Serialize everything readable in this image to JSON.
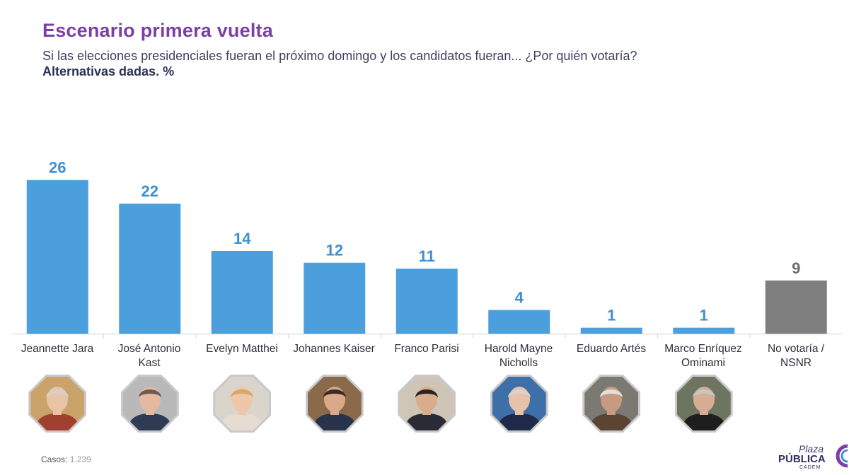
{
  "header": {
    "title": "Escenario primera vuelta",
    "subtitle": "Si las elecciones presidenciales fueran el próximo domingo y los candidatos fueran... ¿Por quién votaría?",
    "subtitle2": "Alternativas dadas. %"
  },
  "chart_data": {
    "type": "bar",
    "categories": [
      "Jeannette Jara",
      "José Antonio Kast",
      "Evelyn Matthei",
      "Johannes Kaiser",
      "Franco Parisi",
      "Harold Mayne Nicholls",
      "Eduardo Artés",
      "Marco Enríquez Ominami",
      "No votaría / NSNR"
    ],
    "values": [
      26,
      22,
      14,
      12,
      11,
      4,
      1,
      1,
      9
    ],
    "bar_colors": [
      "#4a9fdc",
      "#4a9fdc",
      "#4a9fdc",
      "#4a9fdc",
      "#4a9fdc",
      "#4a9fdc",
      "#4a9fdc",
      "#4a9fdc",
      "#7f7f7f"
    ],
    "label_colors": [
      "#3f8fd0",
      "#3f8fd0",
      "#3f8fd0",
      "#3f8fd0",
      "#3f8fd0",
      "#3f8fd0",
      "#3f8fd0",
      "#3f8fd0",
      "#6e6e6e"
    ],
    "ylim": [
      0,
      28
    ],
    "grid": false,
    "xlabel": "",
    "ylabel": ""
  },
  "labels": {
    "jara": [
      "Jeannette Jara"
    ],
    "kast": [
      "José Antonio",
      "Kast"
    ],
    "matthei": [
      "Evelyn Matthei"
    ],
    "kaiser": [
      "Johannes Kaiser"
    ],
    "parisi": [
      "Franco Parisi"
    ],
    "mayne": [
      "Harold Mayne",
      "Nicholls"
    ],
    "artes": [
      "Eduardo Artés"
    ],
    "meo": [
      "Marco Enríquez",
      "Ominami"
    ],
    "nsnr": [
      "No votaría /",
      "NSNR"
    ]
  },
  "avatars": [
    {
      "icon": "candidate-photo-icon",
      "bg": "#c9a36a",
      "skin": "#e8c3a6",
      "hair": "#d8d0c4",
      "suit": "#a0412f"
    },
    {
      "icon": "candidate-photo-icon",
      "bg": "#b9b9b9",
      "skin": "#e4b9a0",
      "hair": "#6b5c52",
      "suit": "#2f3b55"
    },
    {
      "icon": "candidate-photo-icon",
      "bg": "#d9d4cc",
      "skin": "#eec7aa",
      "hair": "#d6a86a",
      "suit": "#e7dcd2"
    },
    {
      "icon": "candidate-photo-icon",
      "bg": "#8a6a4a",
      "skin": "#d9a98a",
      "hair": "#3a2c22",
      "suit": "#28324a"
    },
    {
      "icon": "candidate-photo-icon",
      "bg": "#cfc5b6",
      "skin": "#d8ac8d",
      "hair": "#2a2420",
      "suit": "#2b2b36"
    },
    {
      "icon": "candidate-photo-icon",
      "bg": "#3f6fa8",
      "skin": "#e8c2a8",
      "hair": "#d8d4cc",
      "suit": "#1f2a4a"
    },
    {
      "icon": "candidate-photo-icon",
      "bg": "#7a7a72",
      "skin": "#c99a82",
      "hair": "#e2e0dc",
      "suit": "#5b4433"
    },
    {
      "icon": "candidate-photo-icon",
      "bg": "#6d7560",
      "skin": "#d6ad92",
      "hair": "#c8c6c0",
      "suit": "#1e1e1e"
    }
  ],
  "footer": {
    "cases_label": "Casos:",
    "cases_value": "1.239",
    "logo_line1": "Plaza",
    "logo_line2": "PÚBLICA",
    "logo_line3": "CADEM",
    "logo_colors": {
      "navy": "#2b2f60",
      "purple": "#7b3fa6",
      "blue": "#3f8fd0"
    }
  }
}
